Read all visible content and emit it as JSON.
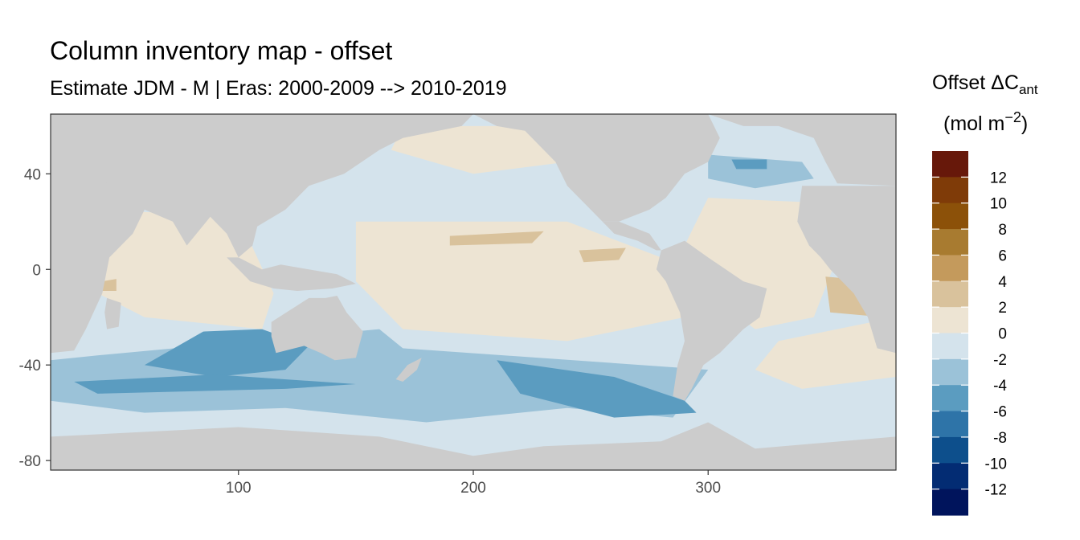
{
  "chart_data": {
    "type": "heatmap",
    "title": "Column inventory map - offset",
    "subtitle": "Estimate JDM - M | Eras: 2000-2009 --> 2010-2019",
    "x_ticks": [
      100,
      200,
      300
    ],
    "y_ticks": [
      40,
      0,
      -40,
      -80
    ],
    "xlim": [
      20,
      380
    ],
    "ylim": [
      -84,
      65
    ],
    "grid": false,
    "legend": {
      "position": "right",
      "title_main": "Offset ΔC",
      "title_sub": "ant",
      "title_unit_prefix": "(mol m",
      "title_unit_sup": "−2",
      "title_unit_suffix": ")",
      "labels": [
        "12",
        "10",
        "8",
        "6",
        "4",
        "2",
        "0",
        "-2",
        "-4",
        "-6",
        "-8",
        "-10",
        "-12"
      ],
      "colors": [
        "#67180a",
        "#7f3b08",
        "#8c5109",
        "#a87b30",
        "#c49a5c",
        "#d9c29c",
        "#ede4d3",
        "#d4e3ec",
        "#9bc2d8",
        "#5b9cc0",
        "#2e74a8",
        "#0d4f8c",
        "#032c73",
        "#00145c"
      ]
    },
    "land_color": "#cccccc",
    "regions": [
      {
        "name": "southern-ocean-band",
        "color": "#d4e3ec",
        "poly": [
          [
            20,
            -30
          ],
          [
            380,
            -30
          ],
          [
            380,
            -80
          ],
          [
            20,
            -80
          ]
        ]
      },
      {
        "name": "south-indian-mid",
        "color": "#9bc2d8",
        "poly": [
          [
            40,
            -36
          ],
          [
            160,
            -25
          ],
          [
            170,
            -33
          ],
          [
            300,
            -42
          ],
          [
            285,
            -62
          ],
          [
            240,
            -58
          ],
          [
            180,
            -64
          ],
          [
            120,
            -58
          ],
          [
            60,
            -60
          ],
          [
            20,
            -55
          ],
          [
            20,
            -38
          ]
        ]
      },
      {
        "name": "south-indian-deep",
        "color": "#5b9cc0",
        "poly": [
          [
            85,
            -26
          ],
          [
            110,
            -25
          ],
          [
            130,
            -32
          ],
          [
            120,
            -42
          ],
          [
            90,
            -45
          ],
          [
            60,
            -40
          ]
        ]
      },
      {
        "name": "south-pacific-deep",
        "color": "#5b9cc0",
        "poly": [
          [
            210,
            -38
          ],
          [
            260,
            -45
          ],
          [
            290,
            -55
          ],
          [
            295,
            -60
          ],
          [
            260,
            -62
          ],
          [
            220,
            -52
          ]
        ]
      },
      {
        "name": "south-indian-band-deep",
        "color": "#5b9cc0",
        "poly": [
          [
            30,
            -47
          ],
          [
            90,
            -44
          ],
          [
            150,
            -48
          ],
          [
            120,
            -50
          ],
          [
            40,
            -52
          ]
        ]
      },
      {
        "name": "pacific-equatorial-warm",
        "color": "#ede4d3",
        "poly": [
          [
            150,
            20
          ],
          [
            240,
            20
          ],
          [
            280,
            5
          ],
          [
            290,
            -20
          ],
          [
            240,
            -30
          ],
          [
            170,
            -25
          ],
          [
            150,
            -5
          ]
        ]
      },
      {
        "name": "north-pacific-cool",
        "color": "#d4e3ec",
        "poly": [
          [
            150,
            35
          ],
          [
            230,
            45
          ],
          [
            240,
            25
          ],
          [
            200,
            22
          ],
          [
            160,
            25
          ]
        ]
      },
      {
        "name": "north-pacific-warm",
        "color": "#ede4d3",
        "poly": [
          [
            170,
            60
          ],
          [
            230,
            60
          ],
          [
            240,
            45
          ],
          [
            200,
            40
          ],
          [
            165,
            50
          ]
        ]
      },
      {
        "name": "pacific-patch-positive",
        "color": "#d9c29c",
        "poly": [
          [
            190,
            14
          ],
          [
            230,
            16
          ],
          [
            225,
            11
          ],
          [
            190,
            10
          ]
        ]
      },
      {
        "name": "pacific-patch-small",
        "color": "#d9c29c",
        "poly": [
          [
            245,
            8
          ],
          [
            265,
            9
          ],
          [
            262,
            4
          ],
          [
            247,
            3
          ]
        ]
      },
      {
        "name": "indian-north-warm",
        "color": "#ede4d3",
        "poly": [
          [
            40,
            25
          ],
          [
            100,
            22
          ],
          [
            115,
            -10
          ],
          [
            110,
            -25
          ],
          [
            60,
            -20
          ],
          [
            30,
            -5
          ]
        ]
      },
      {
        "name": "indian-patch-positive",
        "color": "#d9c29c",
        "poly": [
          [
            42,
            -5
          ],
          [
            48,
            -4
          ],
          [
            48,
            -9
          ],
          [
            42,
            -9
          ]
        ]
      },
      {
        "name": "atlantic-north-cool",
        "color": "#9bc2d8",
        "poly": [
          [
            300,
            48
          ],
          [
            340,
            45
          ],
          [
            345,
            38
          ],
          [
            320,
            34
          ],
          [
            300,
            38
          ]
        ]
      },
      {
        "name": "atlantic-north-deep",
        "color": "#5b9cc0",
        "poly": [
          [
            310,
            46
          ],
          [
            325,
            46
          ],
          [
            325,
            42
          ],
          [
            312,
            42
          ]
        ]
      },
      {
        "name": "atlantic-tropical-warm",
        "color": "#ede4d3",
        "poly": [
          [
            300,
            30
          ],
          [
            345,
            28
          ],
          [
            355,
            5
          ],
          [
            345,
            -20
          ],
          [
            320,
            -25
          ],
          [
            300,
            -10
          ],
          [
            290,
            10
          ]
        ]
      },
      {
        "name": "atlantic-south-positive",
        "color": "#d9c29c",
        "poly": [
          [
            350,
            -3
          ],
          [
            373,
            -5
          ],
          [
            375,
            -20
          ],
          [
            352,
            -18
          ]
        ]
      },
      {
        "name": "atlantic-south-warm",
        "color": "#ede4d3",
        "poly": [
          [
            330,
            -30
          ],
          [
            380,
            -20
          ],
          [
            380,
            -45
          ],
          [
            340,
            -50
          ],
          [
            320,
            -42
          ]
        ]
      }
    ],
    "land": [
      {
        "name": "africa",
        "poly": [
          [
            20,
            65
          ],
          [
            50,
            35
          ],
          [
            60,
            25
          ],
          [
            55,
            15
          ],
          [
            52,
            12
          ],
          [
            45,
            5
          ],
          [
            42,
            -10
          ],
          [
            35,
            -25
          ],
          [
            30,
            -34
          ],
          [
            20,
            -35
          ]
        ]
      },
      {
        "name": "africa-east",
        "poly": [
          [
            340,
            35
          ],
          [
            380,
            35
          ],
          [
            380,
            -35
          ],
          [
            372,
            -33
          ],
          [
            368,
            -20
          ],
          [
            362,
            -10
          ],
          [
            352,
            0
          ],
          [
            348,
            5
          ],
          [
            343,
            10
          ],
          [
            338,
            20
          ]
        ]
      },
      {
        "name": "eurasia",
        "poly": [
          [
            20,
            65
          ],
          [
            200,
            65
          ],
          [
            195,
            60
          ],
          [
            170,
            55
          ],
          [
            160,
            50
          ],
          [
            145,
            40
          ],
          [
            130,
            35
          ],
          [
            120,
            25
          ],
          [
            108,
            18
          ],
          [
            106,
            10
          ],
          [
            100,
            5
          ],
          [
            95,
            15
          ],
          [
            88,
            22
          ],
          [
            78,
            10
          ],
          [
            72,
            20
          ],
          [
            60,
            25
          ],
          [
            50,
            30
          ],
          [
            40,
            40
          ],
          [
            20,
            45
          ]
        ]
      },
      {
        "name": "madagascar",
        "poly": [
          [
            44,
            -12
          ],
          [
            50,
            -14
          ],
          [
            49,
            -24
          ],
          [
            44,
            -25
          ],
          [
            43,
            -18
          ]
        ]
      },
      {
        "name": "australia",
        "poly": [
          [
            114,
            -22
          ],
          [
            122,
            -17
          ],
          [
            130,
            -12
          ],
          [
            137,
            -12
          ],
          [
            142,
            -11
          ],
          [
            146,
            -18
          ],
          [
            153,
            -26
          ],
          [
            150,
            -37
          ],
          [
            141,
            -38
          ],
          [
            135,
            -35
          ],
          [
            128,
            -32
          ],
          [
            116,
            -35
          ],
          [
            114,
            -28
          ]
        ]
      },
      {
        "name": "indonesia",
        "poly": [
          [
            95,
            5
          ],
          [
            105,
            -5
          ],
          [
            115,
            -8
          ],
          [
            125,
            -9
          ],
          [
            140,
            -8
          ],
          [
            150,
            -6
          ],
          [
            142,
            -2
          ],
          [
            130,
            0
          ],
          [
            118,
            2
          ],
          [
            110,
            0
          ],
          [
            100,
            5
          ]
        ]
      },
      {
        "name": "new-zealand",
        "poly": [
          [
            167,
            -46
          ],
          [
            172,
            -40
          ],
          [
            178,
            -37
          ],
          [
            176,
            -42
          ],
          [
            170,
            -47
          ]
        ]
      },
      {
        "name": "north-america",
        "poly": [
          [
            200,
            65
          ],
          [
            300,
            65
          ],
          [
            305,
            55
          ],
          [
            300,
            45
          ],
          [
            290,
            40
          ],
          [
            282,
            30
          ],
          [
            275,
            25
          ],
          [
            262,
            20
          ],
          [
            255,
            20
          ],
          [
            250,
            25
          ],
          [
            240,
            35
          ],
          [
            235,
            45
          ],
          [
            222,
            58
          ],
          [
            210,
            60
          ]
        ]
      },
      {
        "name": "central-america",
        "poly": [
          [
            255,
            20
          ],
          [
            262,
            20
          ],
          [
            275,
            15
          ],
          [
            280,
            8
          ],
          [
            278,
            8
          ],
          [
            270,
            12
          ],
          [
            260,
            15
          ]
        ]
      },
      {
        "name": "south-america",
        "poly": [
          [
            280,
            8
          ],
          [
            290,
            12
          ],
          [
            300,
            5
          ],
          [
            315,
            -5
          ],
          [
            325,
            -8
          ],
          [
            322,
            -20
          ],
          [
            315,
            -25
          ],
          [
            305,
            -35
          ],
          [
            298,
            -40
          ],
          [
            293,
            -50
          ],
          [
            290,
            -55
          ],
          [
            285,
            -53
          ],
          [
            287,
            -40
          ],
          [
            290,
            -30
          ],
          [
            288,
            -18
          ],
          [
            282,
            -5
          ],
          [
            278,
            0
          ]
        ]
      },
      {
        "name": "greenland-europe",
        "poly": [
          [
            300,
            65
          ],
          [
            380,
            65
          ],
          [
            380,
            35
          ],
          [
            355,
            36
          ],
          [
            350,
            45
          ],
          [
            345,
            55
          ],
          [
            330,
            60
          ],
          [
            315,
            60
          ]
        ]
      },
      {
        "name": "antarctica",
        "poly": [
          [
            20,
            -70
          ],
          [
            100,
            -66
          ],
          [
            160,
            -70
          ],
          [
            200,
            -78
          ],
          [
            230,
            -74
          ],
          [
            280,
            -72
          ],
          [
            300,
            -64
          ],
          [
            320,
            -75
          ],
          [
            380,
            -70
          ],
          [
            380,
            -84
          ],
          [
            20,
            -84
          ]
        ]
      }
    ]
  }
}
